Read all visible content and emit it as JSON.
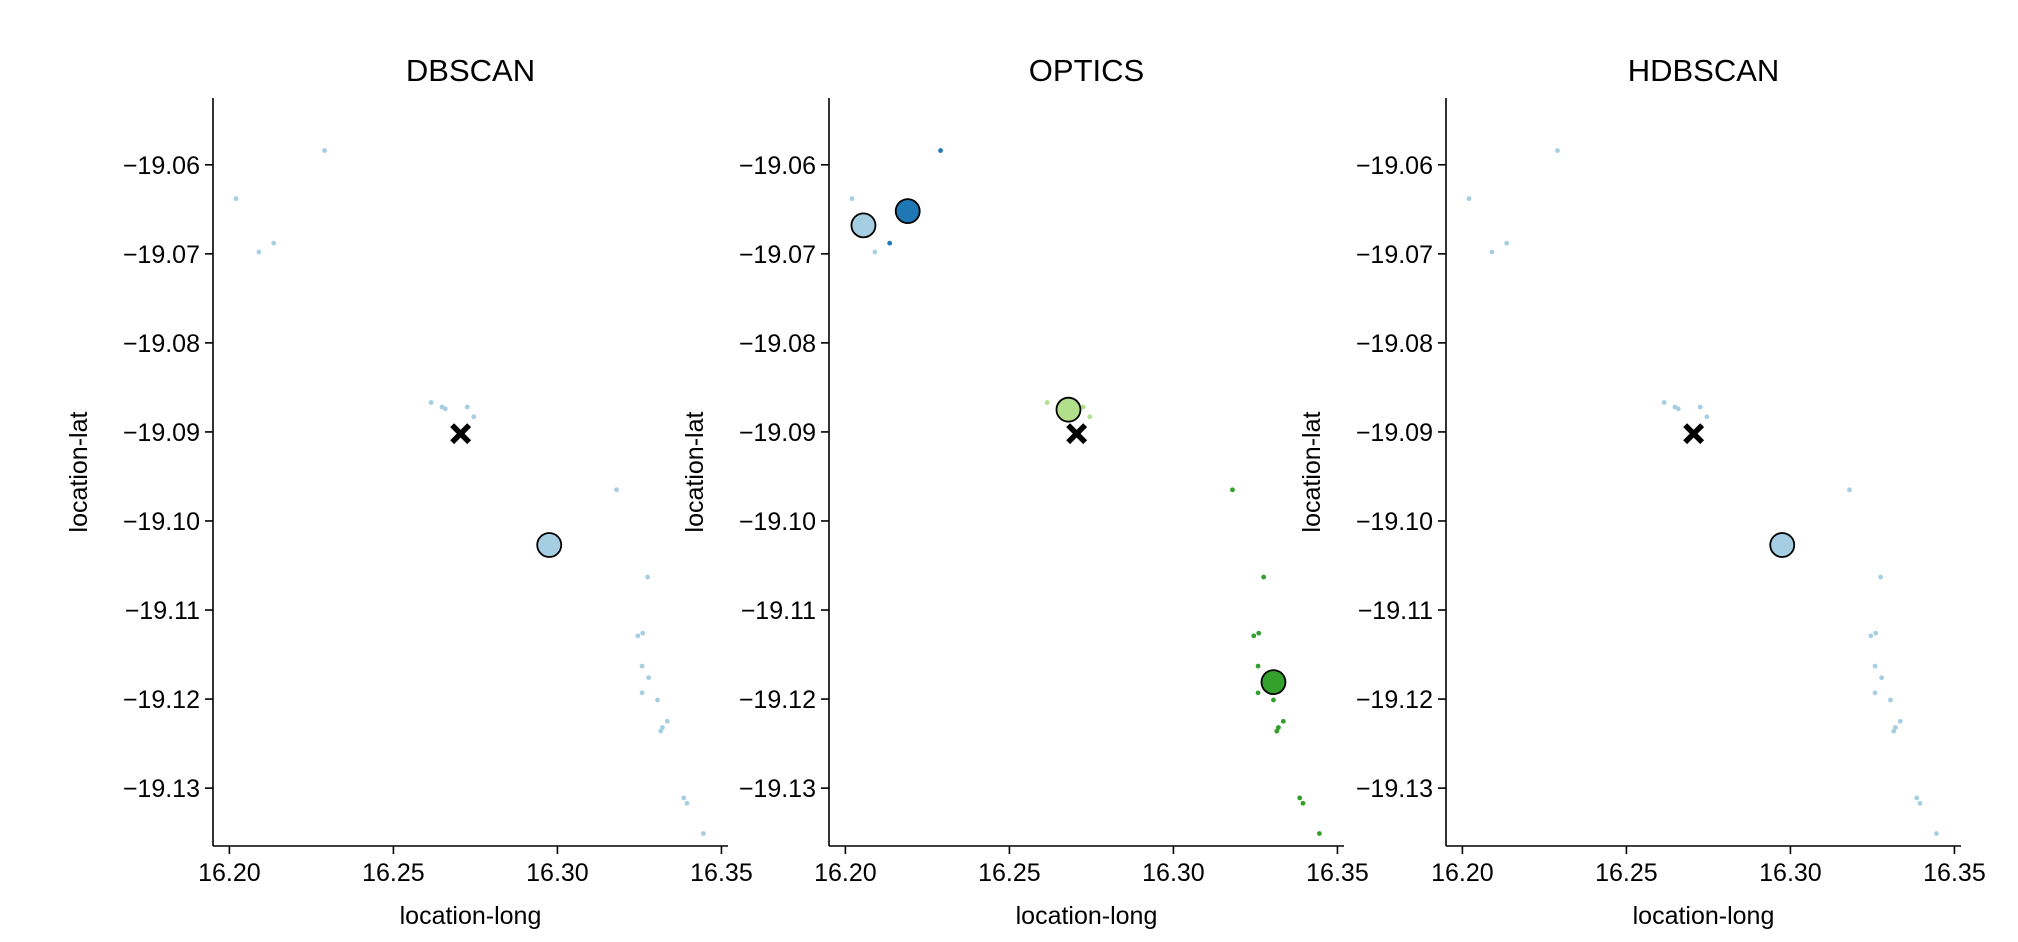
{
  "chart_data": [
    {
      "type": "scatter",
      "title": "DBSCAN",
      "xlabel": "location-long",
      "ylabel": "location-lat",
      "xlim": [
        16.195,
        16.352
      ],
      "ylim": [
        -19.1365,
        -19.0525
      ],
      "xticks": [
        "16.20",
        "16.25",
        "16.30",
        "16.35"
      ],
      "yticks": [
        "−19.06",
        "−19.07",
        "−19.08",
        "−19.09",
        "−19.10",
        "−19.11",
        "−19.12",
        "−19.13"
      ],
      "points": [
        {
          "x": 16.229,
          "y": -19.0584,
          "c": "#a6cee3"
        },
        {
          "x": 16.202,
          "y": -19.0638,
          "c": "#a6cee3"
        },
        {
          "x": 16.2135,
          "y": -19.0688,
          "c": "#a6cee3"
        },
        {
          "x": 16.209,
          "y": -19.0698,
          "c": "#a6cee3"
        },
        {
          "x": 16.2615,
          "y": -19.0867,
          "c": "#a6cee3"
        },
        {
          "x": 16.2648,
          "y": -19.0872,
          "c": "#a6cee3"
        },
        {
          "x": 16.2658,
          "y": -19.0874,
          "c": "#a6cee3"
        },
        {
          "x": 16.2725,
          "y": -19.0872,
          "c": "#a6cee3"
        },
        {
          "x": 16.2745,
          "y": -19.0883,
          "c": "#a6cee3"
        },
        {
          "x": 16.318,
          "y": -19.0965,
          "c": "#a6cee3"
        },
        {
          "x": 16.3275,
          "y": -19.1063,
          "c": "#a6cee3"
        },
        {
          "x": 16.3245,
          "y": -19.1129,
          "c": "#a6cee3"
        },
        {
          "x": 16.326,
          "y": -19.1126,
          "c": "#a6cee3"
        },
        {
          "x": 16.3258,
          "y": -19.1163,
          "c": "#a6cee3"
        },
        {
          "x": 16.3278,
          "y": -19.1176,
          "c": "#a6cee3"
        },
        {
          "x": 16.3258,
          "y": -19.1193,
          "c": "#a6cee3"
        },
        {
          "x": 16.3305,
          "y": -19.1201,
          "c": "#a6cee3"
        },
        {
          "x": 16.3335,
          "y": -19.1225,
          "c": "#a6cee3"
        },
        {
          "x": 16.332,
          "y": -19.1232,
          "c": "#a6cee3"
        },
        {
          "x": 16.3315,
          "y": -19.1236,
          "c": "#a6cee3"
        },
        {
          "x": 16.3385,
          "y": -19.1311,
          "c": "#a6cee3"
        },
        {
          "x": 16.3395,
          "y": -19.1317,
          "c": "#a6cee3"
        },
        {
          "x": 16.3445,
          "y": -19.1351,
          "c": "#a6cee3"
        }
      ],
      "centers": [
        {
          "x": 16.2975,
          "y": -19.1027,
          "c": "#a6cee3"
        }
      ],
      "marker": {
        "x": 16.2705,
        "y": -19.0902
      }
    },
    {
      "type": "scatter",
      "title": "OPTICS",
      "xlabel": "location-long",
      "ylabel": "location-lat",
      "xlim": [
        16.195,
        16.352
      ],
      "ylim": [
        -19.1365,
        -19.0525
      ],
      "xticks": [
        "16.20",
        "16.25",
        "16.30",
        "16.35"
      ],
      "yticks": [
        "−19.06",
        "−19.07",
        "−19.08",
        "−19.09",
        "−19.10",
        "−19.11",
        "−19.12",
        "−19.13"
      ],
      "points": [
        {
          "x": 16.229,
          "y": -19.0584,
          "c": "#1f78b4"
        },
        {
          "x": 16.202,
          "y": -19.0638,
          "c": "#a6cee3"
        },
        {
          "x": 16.2135,
          "y": -19.0688,
          "c": "#1f78b4"
        },
        {
          "x": 16.209,
          "y": -19.0698,
          "c": "#a6cee3"
        },
        {
          "x": 16.2615,
          "y": -19.0867,
          "c": "#b2df8a"
        },
        {
          "x": 16.2658,
          "y": -19.0874,
          "c": "#b2df8a"
        },
        {
          "x": 16.2725,
          "y": -19.0872,
          "c": "#b2df8a"
        },
        {
          "x": 16.2745,
          "y": -19.0883,
          "c": "#b2df8a"
        },
        {
          "x": 16.318,
          "y": -19.0965,
          "c": "#33a02c"
        },
        {
          "x": 16.3275,
          "y": -19.1063,
          "c": "#33a02c"
        },
        {
          "x": 16.3245,
          "y": -19.1129,
          "c": "#33a02c"
        },
        {
          "x": 16.326,
          "y": -19.1126,
          "c": "#33a02c"
        },
        {
          "x": 16.3258,
          "y": -19.1163,
          "c": "#33a02c"
        },
        {
          "x": 16.3258,
          "y": -19.1193,
          "c": "#33a02c"
        },
        {
          "x": 16.3305,
          "y": -19.1201,
          "c": "#33a02c"
        },
        {
          "x": 16.3335,
          "y": -19.1225,
          "c": "#33a02c"
        },
        {
          "x": 16.332,
          "y": -19.1232,
          "c": "#33a02c"
        },
        {
          "x": 16.3315,
          "y": -19.1236,
          "c": "#33a02c"
        },
        {
          "x": 16.3385,
          "y": -19.1311,
          "c": "#33a02c"
        },
        {
          "x": 16.3395,
          "y": -19.1317,
          "c": "#33a02c"
        },
        {
          "x": 16.3445,
          "y": -19.1351,
          "c": "#33a02c"
        }
      ],
      "centers": [
        {
          "x": 16.2055,
          "y": -19.0668,
          "c": "#a6cee3"
        },
        {
          "x": 16.219,
          "y": -19.0652,
          "c": "#1f78b4"
        },
        {
          "x": 16.268,
          "y": -19.0875,
          "c": "#b2df8a"
        },
        {
          "x": 16.3305,
          "y": -19.1181,
          "c": "#33a02c"
        }
      ],
      "marker": {
        "x": 16.2705,
        "y": -19.0902
      }
    },
    {
      "type": "scatter",
      "title": "HDBSCAN",
      "xlabel": "location-long",
      "ylabel": "location-lat",
      "xlim": [
        16.195,
        16.352
      ],
      "ylim": [
        -19.1365,
        -19.0525
      ],
      "xticks": [
        "16.20",
        "16.25",
        "16.30",
        "16.35"
      ],
      "yticks": [
        "−19.06",
        "−19.07",
        "−19.08",
        "−19.09",
        "−19.10",
        "−19.11",
        "−19.12",
        "−19.13"
      ],
      "points": [
        {
          "x": 16.229,
          "y": -19.0584,
          "c": "#a6cee3"
        },
        {
          "x": 16.202,
          "y": -19.0638,
          "c": "#a6cee3"
        },
        {
          "x": 16.2135,
          "y": -19.0688,
          "c": "#a6cee3"
        },
        {
          "x": 16.209,
          "y": -19.0698,
          "c": "#a6cee3"
        },
        {
          "x": 16.2615,
          "y": -19.0867,
          "c": "#a6cee3"
        },
        {
          "x": 16.2648,
          "y": -19.0872,
          "c": "#a6cee3"
        },
        {
          "x": 16.2658,
          "y": -19.0874,
          "c": "#a6cee3"
        },
        {
          "x": 16.2725,
          "y": -19.0872,
          "c": "#a6cee3"
        },
        {
          "x": 16.2745,
          "y": -19.0883,
          "c": "#a6cee3"
        },
        {
          "x": 16.318,
          "y": -19.0965,
          "c": "#a6cee3"
        },
        {
          "x": 16.3275,
          "y": -19.1063,
          "c": "#a6cee3"
        },
        {
          "x": 16.3245,
          "y": -19.1129,
          "c": "#a6cee3"
        },
        {
          "x": 16.326,
          "y": -19.1126,
          "c": "#a6cee3"
        },
        {
          "x": 16.3258,
          "y": -19.1163,
          "c": "#a6cee3"
        },
        {
          "x": 16.3278,
          "y": -19.1176,
          "c": "#a6cee3"
        },
        {
          "x": 16.3258,
          "y": -19.1193,
          "c": "#a6cee3"
        },
        {
          "x": 16.3305,
          "y": -19.1201,
          "c": "#a6cee3"
        },
        {
          "x": 16.3335,
          "y": -19.1225,
          "c": "#a6cee3"
        },
        {
          "x": 16.332,
          "y": -19.1232,
          "c": "#a6cee3"
        },
        {
          "x": 16.3315,
          "y": -19.1236,
          "c": "#a6cee3"
        },
        {
          "x": 16.3385,
          "y": -19.1311,
          "c": "#a6cee3"
        },
        {
          "x": 16.3395,
          "y": -19.1317,
          "c": "#a6cee3"
        },
        {
          "x": 16.3445,
          "y": -19.1351,
          "c": "#a6cee3"
        }
      ],
      "centers": [
        {
          "x": 16.2975,
          "y": -19.1027,
          "c": "#a6cee3"
        }
      ],
      "marker": {
        "x": 16.2705,
        "y": -19.0902
      }
    }
  ]
}
